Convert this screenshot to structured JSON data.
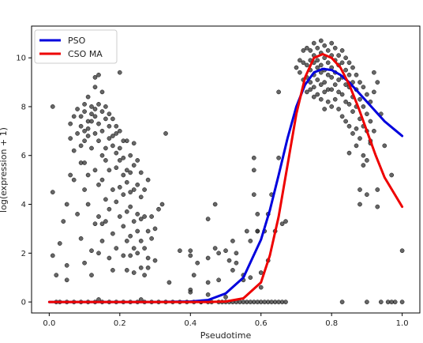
{
  "chart_data": {
    "type": "scatter",
    "title": "",
    "xlabel": "Pseudotime",
    "ylabel": "log(expression + 1)",
    "xlim": [
      -0.05,
      1.05
    ],
    "ylim": [
      -0.45,
      11.3
    ],
    "xticks": [
      0.0,
      0.2,
      0.4,
      0.6,
      0.8,
      1.0
    ],
    "xtick_labels": [
      "0.0",
      "0.2",
      "0.4",
      "0.6",
      "0.8",
      "1.0"
    ],
    "yticks": [
      0,
      2,
      4,
      6,
      8,
      10
    ],
    "ytick_labels": [
      "0",
      "2",
      "4",
      "6",
      "8",
      "10"
    ],
    "grid": false,
    "legend_position": "top-left",
    "point_color": "#333333",
    "points": [
      [
        0.01,
        8.0
      ],
      [
        0.01,
        4.5
      ],
      [
        0.01,
        1.9
      ],
      [
        0.02,
        1.1
      ],
      [
        0.03,
        2.4
      ],
      [
        0.04,
        3.3
      ],
      [
        0.05,
        1.5
      ],
      [
        0.05,
        0.9
      ],
      [
        0.05,
        4.0
      ],
      [
        0.06,
        5.2
      ],
      [
        0.06,
        6.7
      ],
      [
        0.06,
        7.3
      ],
      [
        0.07,
        6.2
      ],
      [
        0.07,
        7.6
      ],
      [
        0.07,
        5.0
      ],
      [
        0.08,
        6.9
      ],
      [
        0.08,
        7.9
      ],
      [
        0.08,
        3.6
      ],
      [
        0.09,
        7.2
      ],
      [
        0.09,
        5.7
      ],
      [
        0.09,
        6.4
      ],
      [
        0.09,
        7.6
      ],
      [
        0.09,
        2.6
      ],
      [
        0.1,
        7.0
      ],
      [
        0.1,
        6.6
      ],
      [
        0.1,
        7.8
      ],
      [
        0.1,
        8.1
      ],
      [
        0.1,
        5.7
      ],
      [
        0.1,
        4.6
      ],
      [
        0.1,
        1.6
      ],
      [
        0.11,
        7.1
      ],
      [
        0.11,
        8.4
      ],
      [
        0.11,
        6.8
      ],
      [
        0.11,
        7.4
      ],
      [
        0.11,
        4.0
      ],
      [
        0.11,
        5.2
      ],
      [
        0.12,
        7.4
      ],
      [
        0.12,
        8.0
      ],
      [
        0.12,
        6.3
      ],
      [
        0.12,
        7.7
      ],
      [
        0.12,
        2.1
      ],
      [
        0.12,
        1.1
      ],
      [
        0.13,
        9.2
      ],
      [
        0.13,
        8.8
      ],
      [
        0.13,
        7.6
      ],
      [
        0.13,
        6.9
      ],
      [
        0.13,
        5.4
      ],
      [
        0.13,
        3.2
      ],
      [
        0.13,
        7.9
      ],
      [
        0.14,
        9.3
      ],
      [
        0.14,
        8.1
      ],
      [
        0.14,
        6.6
      ],
      [
        0.14,
        7.3
      ],
      [
        0.14,
        4.8
      ],
      [
        0.14,
        3.5
      ],
      [
        0.14,
        2.0
      ],
      [
        0.15,
        7.0
      ],
      [
        0.15,
        8.6
      ],
      [
        0.15,
        6.0
      ],
      [
        0.15,
        7.8
      ],
      [
        0.15,
        5.0
      ],
      [
        0.15,
        3.2
      ],
      [
        0.15,
        2.5
      ],
      [
        0.16,
        7.5
      ],
      [
        0.16,
        6.3
      ],
      [
        0.16,
        8.0
      ],
      [
        0.16,
        5.8
      ],
      [
        0.16,
        4.2
      ],
      [
        0.16,
        3.3
      ],
      [
        0.17,
        7.2
      ],
      [
        0.17,
        6.7
      ],
      [
        0.17,
        7.7
      ],
      [
        0.17,
        5.4
      ],
      [
        0.17,
        3.8
      ],
      [
        0.17,
        1.8
      ],
      [
        0.18,
        6.8
      ],
      [
        0.18,
        7.5
      ],
      [
        0.18,
        6.4
      ],
      [
        0.18,
        4.6
      ],
      [
        0.18,
        2.8
      ],
      [
        0.18,
        1.3
      ],
      [
        0.19,
        7.2
      ],
      [
        0.19,
        6.9
      ],
      [
        0.19,
        5.5
      ],
      [
        0.19,
        6.1
      ],
      [
        0.19,
        4.1
      ],
      [
        0.19,
        2.2
      ],
      [
        0.2,
        6.3
      ],
      [
        0.2,
        7.0
      ],
      [
        0.2,
        5.8
      ],
      [
        0.2,
        4.7
      ],
      [
        0.2,
        3.5
      ],
      [
        0.2,
        9.4
      ],
      [
        0.21,
        5.9
      ],
      [
        0.21,
        6.6
      ],
      [
        0.21,
        5.2
      ],
      [
        0.21,
        4.4
      ],
      [
        0.21,
        3.1
      ],
      [
        0.21,
        1.9
      ],
      [
        0.22,
        6.6
      ],
      [
        0.22,
        5.4
      ],
      [
        0.22,
        4.9
      ],
      [
        0.22,
        3.7
      ],
      [
        0.22,
        2.5
      ],
      [
        0.22,
        1.3
      ],
      [
        0.23,
        6.0
      ],
      [
        0.23,
        5.3
      ],
      [
        0.23,
        4.5
      ],
      [
        0.23,
        3.9
      ],
      [
        0.23,
        2.7
      ],
      [
        0.23,
        1.9
      ],
      [
        0.24,
        6.5
      ],
      [
        0.24,
        5.6
      ],
      [
        0.24,
        4.6
      ],
      [
        0.24,
        3.3
      ],
      [
        0.24,
        2.2
      ],
      [
        0.24,
        1.2
      ],
      [
        0.25,
        5.8
      ],
      [
        0.25,
        4.8
      ],
      [
        0.25,
        3.6
      ],
      [
        0.25,
        2.9
      ],
      [
        0.25,
        2.0
      ],
      [
        0.26,
        5.3
      ],
      [
        0.26,
        4.3
      ],
      [
        0.26,
        3.4
      ],
      [
        0.26,
        2.5
      ],
      [
        0.26,
        1.4
      ],
      [
        0.27,
        4.6
      ],
      [
        0.27,
        3.5
      ],
      [
        0.27,
        2.2
      ],
      [
        0.27,
        1.1
      ],
      [
        0.28,
        5.0
      ],
      [
        0.28,
        2.9
      ],
      [
        0.28,
        1.8
      ],
      [
        0.28,
        1.4
      ],
      [
        0.29,
        3.5
      ],
      [
        0.29,
        2.6
      ],
      [
        0.3,
        3.0
      ],
      [
        0.3,
        1.7
      ],
      [
        0.31,
        3.8
      ],
      [
        0.32,
        4.0
      ],
      [
        0.33,
        6.9
      ],
      [
        0.34,
        0.8
      ],
      [
        0.37,
        2.1
      ],
      [
        0.4,
        2.1
      ],
      [
        0.4,
        1.9
      ],
      [
        0.4,
        0.5
      ],
      [
        0.4,
        0.4
      ],
      [
        0.41,
        1.1
      ],
      [
        0.42,
        1.6
      ],
      [
        0.43,
        0.0
      ],
      [
        0.45,
        3.4
      ],
      [
        0.45,
        1.8
      ],
      [
        0.45,
        0.8
      ],
      [
        0.45,
        0.3
      ],
      [
        0.47,
        4.0
      ],
      [
        0.47,
        2.2
      ],
      [
        0.48,
        2.0
      ],
      [
        0.48,
        0.9
      ],
      [
        0.5,
        2.1
      ],
      [
        0.5,
        0.2
      ],
      [
        0.51,
        1.7
      ],
      [
        0.52,
        2.5
      ],
      [
        0.52,
        1.3
      ],
      [
        0.53,
        2.0
      ],
      [
        0.53,
        1.6
      ],
      [
        0.55,
        1.1
      ],
      [
        0.55,
        0.9
      ],
      [
        0.56,
        2.9
      ],
      [
        0.57,
        2.5
      ],
      [
        0.57,
        1.0
      ],
      [
        0.58,
        5.9
      ],
      [
        0.58,
        5.4
      ],
      [
        0.58,
        4.4
      ],
      [
        0.59,
        3.6
      ],
      [
        0.59,
        2.9
      ],
      [
        0.59,
        2.9
      ],
      [
        0.6,
        1.2
      ],
      [
        0.6,
        0.6
      ],
      [
        0.61,
        2.9
      ],
      [
        0.62,
        3.6
      ],
      [
        0.62,
        1.7
      ],
      [
        0.63,
        4.4
      ],
      [
        0.64,
        2.9
      ],
      [
        0.65,
        8.6
      ],
      [
        0.65,
        5.9
      ],
      [
        0.66,
        3.2
      ],
      [
        0.67,
        3.3
      ],
      [
        0.7,
        9.6
      ],
      [
        0.71,
        9.9
      ],
      [
        0.71,
        9.4
      ],
      [
        0.72,
        10.3
      ],
      [
        0.72,
        9.8
      ],
      [
        0.72,
        9.1
      ],
      [
        0.73,
        10.4
      ],
      [
        0.73,
        9.7
      ],
      [
        0.73,
        9.2
      ],
      [
        0.73,
        8.6
      ],
      [
        0.74,
        10.3
      ],
      [
        0.74,
        9.9
      ],
      [
        0.74,
        9.5
      ],
      [
        0.74,
        9.0
      ],
      [
        0.74,
        8.7
      ],
      [
        0.75,
        10.6
      ],
      [
        0.75,
        10.1
      ],
      [
        0.75,
        9.8
      ],
      [
        0.75,
        9.3
      ],
      [
        0.75,
        8.8
      ],
      [
        0.75,
        8.4
      ],
      [
        0.76,
        10.4
      ],
      [
        0.76,
        9.9
      ],
      [
        0.76,
        9.6
      ],
      [
        0.76,
        9.1
      ],
      [
        0.76,
        8.5
      ],
      [
        0.77,
        10.7
      ],
      [
        0.77,
        10.2
      ],
      [
        0.77,
        9.7
      ],
      [
        0.77,
        9.4
      ],
      [
        0.77,
        8.9
      ],
      [
        0.77,
        8.3
      ],
      [
        0.78,
        10.5
      ],
      [
        0.78,
        10.0
      ],
      [
        0.78,
        9.5
      ],
      [
        0.78,
        9.0
      ],
      [
        0.78,
        8.6
      ],
      [
        0.78,
        7.9
      ],
      [
        0.79,
        10.3
      ],
      [
        0.79,
        9.8
      ],
      [
        0.79,
        9.3
      ],
      [
        0.79,
        8.7
      ],
      [
        0.79,
        8.2
      ],
      [
        0.8,
        10.6
      ],
      [
        0.8,
        10.1
      ],
      [
        0.8,
        9.6
      ],
      [
        0.8,
        9.2
      ],
      [
        0.8,
        8.7
      ],
      [
        0.8,
        8.0
      ],
      [
        0.81,
        10.4
      ],
      [
        0.81,
        9.9
      ],
      [
        0.81,
        9.4
      ],
      [
        0.81,
        8.9
      ],
      [
        0.81,
        8.3
      ],
      [
        0.82,
        10.1
      ],
      [
        0.82,
        9.7
      ],
      [
        0.82,
        9.1
      ],
      [
        0.82,
        8.6
      ],
      [
        0.82,
        7.9
      ],
      [
        0.83,
        10.3
      ],
      [
        0.83,
        9.8
      ],
      [
        0.83,
        9.2
      ],
      [
        0.83,
        8.5
      ],
      [
        0.83,
        7.6
      ],
      [
        0.84,
        10.0
      ],
      [
        0.84,
        9.5
      ],
      [
        0.84,
        8.9
      ],
      [
        0.84,
        8.2
      ],
      [
        0.84,
        7.4
      ],
      [
        0.85,
        9.8
      ],
      [
        0.85,
        9.3
      ],
      [
        0.85,
        8.8
      ],
      [
        0.85,
        8.1
      ],
      [
        0.85,
        7.2
      ],
      [
        0.85,
        6.1
      ],
      [
        0.86,
        9.6
      ],
      [
        0.86,
        9.0
      ],
      [
        0.86,
        8.4
      ],
      [
        0.86,
        7.8
      ],
      [
        0.86,
        6.9
      ],
      [
        0.87,
        9.3
      ],
      [
        0.87,
        8.7
      ],
      [
        0.87,
        8.0
      ],
      [
        0.87,
        7.1
      ],
      [
        0.87,
        6.4
      ],
      [
        0.88,
        9.0
      ],
      [
        0.88,
        8.3
      ],
      [
        0.88,
        7.5
      ],
      [
        0.88,
        6.7
      ],
      [
        0.88,
        4.6
      ],
      [
        0.88,
        4.0
      ],
      [
        0.89,
        8.8
      ],
      [
        0.89,
        8.0
      ],
      [
        0.89,
        7.2
      ],
      [
        0.89,
        6.0
      ],
      [
        0.89,
        5.6
      ],
      [
        0.9,
        8.5
      ],
      [
        0.9,
        7.7
      ],
      [
        0.9,
        7.0
      ],
      [
        0.9,
        5.8
      ],
      [
        0.9,
        4.4
      ],
      [
        0.91,
        8.2
      ],
      [
        0.91,
        7.4
      ],
      [
        0.91,
        6.6
      ],
      [
        0.91,
        6.5
      ],
      [
        0.92,
        9.4
      ],
      [
        0.92,
        8.6
      ],
      [
        0.92,
        7.0
      ],
      [
        0.93,
        9.0
      ],
      [
        0.93,
        4.6
      ],
      [
        0.93,
        3.9
      ],
      [
        0.94,
        7.7
      ],
      [
        0.95,
        6.4
      ],
      [
        0.97,
        5.2
      ],
      [
        1.0,
        2.1
      ],
      [
        0.02,
        0.0
      ],
      [
        0.03,
        0.0
      ],
      [
        0.05,
        0.0
      ],
      [
        0.07,
        0.0
      ],
      [
        0.09,
        0.0
      ],
      [
        0.11,
        0.0
      ],
      [
        0.13,
        0.0
      ],
      [
        0.15,
        0.0
      ],
      [
        0.17,
        0.0
      ],
      [
        0.19,
        0.0
      ],
      [
        0.21,
        0.0
      ],
      [
        0.23,
        0.0
      ],
      [
        0.25,
        0.0
      ],
      [
        0.27,
        0.0
      ],
      [
        0.29,
        0.0
      ],
      [
        0.31,
        0.0
      ],
      [
        0.33,
        0.0
      ],
      [
        0.35,
        0.0
      ],
      [
        0.37,
        0.0
      ],
      [
        0.39,
        0.0
      ],
      [
        0.41,
        0.0
      ],
      [
        0.43,
        0.0
      ],
      [
        0.45,
        0.0
      ],
      [
        0.46,
        0.0
      ],
      [
        0.48,
        0.0
      ],
      [
        0.49,
        0.0
      ],
      [
        0.5,
        0.0
      ],
      [
        0.51,
        0.0
      ],
      [
        0.52,
        0.0
      ],
      [
        0.53,
        0.0
      ],
      [
        0.54,
        0.0
      ],
      [
        0.55,
        0.0
      ],
      [
        0.56,
        0.0
      ],
      [
        0.57,
        0.0
      ],
      [
        0.58,
        0.0
      ],
      [
        0.59,
        0.0
      ],
      [
        0.6,
        0.0
      ],
      [
        0.61,
        0.0
      ],
      [
        0.62,
        0.0
      ],
      [
        0.63,
        0.0
      ],
      [
        0.64,
        0.0
      ],
      [
        0.65,
        0.0
      ],
      [
        0.66,
        0.0
      ],
      [
        0.67,
        0.0
      ],
      [
        0.83,
        0.0
      ],
      [
        0.9,
        0.0
      ],
      [
        0.94,
        0.0
      ],
      [
        0.96,
        0.0
      ],
      [
        0.97,
        0.0
      ],
      [
        0.98,
        0.0
      ],
      [
        1.0,
        0.0
      ],
      [
        0.14,
        0.1
      ],
      [
        0.26,
        0.1
      ]
    ],
    "series": [
      {
        "name": "PSO",
        "color": "#0000dd",
        "x": [
          0.0,
          0.1,
          0.2,
          0.3,
          0.4,
          0.45,
          0.5,
          0.55,
          0.6,
          0.625,
          0.65,
          0.675,
          0.7,
          0.725,
          0.75,
          0.775,
          0.8,
          0.825,
          0.85,
          0.875,
          0.9,
          0.925,
          0.95,
          0.975,
          1.0
        ],
        "y": [
          0.0,
          0.0,
          0.0,
          0.0,
          0.02,
          0.08,
          0.35,
          1.0,
          2.55,
          3.75,
          5.2,
          6.7,
          8.0,
          8.9,
          9.4,
          9.55,
          9.5,
          9.3,
          9.0,
          8.6,
          8.2,
          7.8,
          7.4,
          7.1,
          6.8
        ]
      },
      {
        "name": "CSO MA",
        "color": "#ee0000",
        "x": [
          0.0,
          0.1,
          0.2,
          0.3,
          0.4,
          0.45,
          0.5,
          0.55,
          0.6,
          0.625,
          0.65,
          0.675,
          0.7,
          0.725,
          0.75,
          0.775,
          0.8,
          0.825,
          0.85,
          0.875,
          0.9,
          0.925,
          0.95,
          0.975,
          1.0
        ],
        "y": [
          0.0,
          0.0,
          0.0,
          0.0,
          0.0,
          0.0,
          0.02,
          0.15,
          0.8,
          1.9,
          3.5,
          5.6,
          7.7,
          9.2,
          10.0,
          10.15,
          10.0,
          9.6,
          8.9,
          8.0,
          7.0,
          6.0,
          5.1,
          4.5,
          3.9
        ]
      }
    ]
  }
}
